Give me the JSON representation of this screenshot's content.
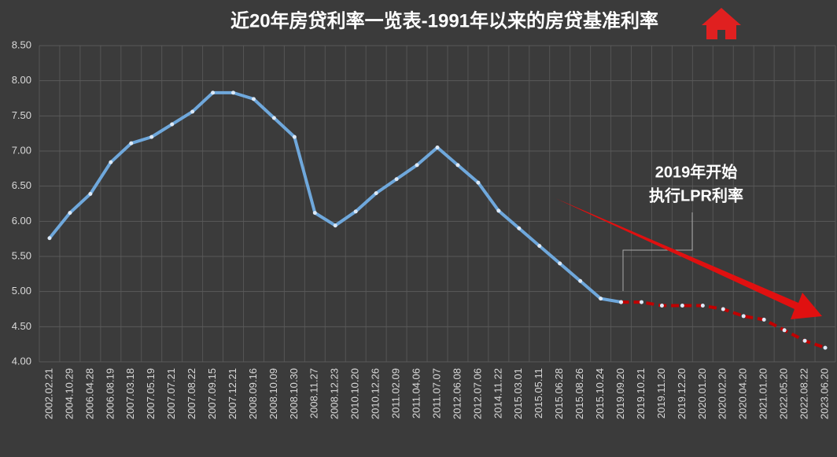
{
  "chart_data": {
    "type": "line",
    "title": "近20年房贷利率一览表-1991年以来的房贷基准利率",
    "annotation": [
      "2019年开始",
      "执行LPR利率"
    ],
    "categories": [
      "2002.02.21",
      "2004.10.29",
      "2006.04.28",
      "2006.08.19",
      "2007.03.18",
      "2007.05.19",
      "2007.07.21",
      "2007.08.22",
      "2007.09.15",
      "2007.12.21",
      "2008.09.16",
      "2008.10.09",
      "2008.10.30",
      "2008.11.27",
      "2008.12.23",
      "2010.10.20",
      "2010.12.26",
      "2011.02.09",
      "2011.04.06",
      "2011.07.07",
      "2012.06.08",
      "2012.07.06",
      "2014.11.22",
      "2015.03.01",
      "2015.05.11",
      "2015.06.28",
      "2015.08.26",
      "2015.10.24",
      "2019.09.20",
      "2019.10.21",
      "2019.11.20",
      "2019.12.20",
      "2020.01.20",
      "2020.02.20",
      "2020.04.20",
      "2021.01.20",
      "2022.05.20",
      "2022.08.22",
      "2023.06.20"
    ],
    "series": [
      {
        "color": "#6fa8dc",
        "dashed": false,
        "values": [
          5.76,
          6.12,
          6.39,
          6.84,
          7.11,
          7.2,
          7.38,
          7.56,
          7.83,
          7.83,
          7.74,
          7.47,
          7.2,
          6.12,
          5.94,
          6.14,
          6.4,
          6.6,
          6.8,
          7.05,
          6.8,
          6.55,
          6.15,
          5.9,
          5.65,
          5.4,
          5.15,
          4.9,
          4.85,
          null,
          null,
          null,
          null,
          null,
          null,
          null,
          null,
          null,
          null
        ]
      },
      {
        "color": "#c00000",
        "dashed": true,
        "values": [
          null,
          null,
          null,
          null,
          null,
          null,
          null,
          null,
          null,
          null,
          null,
          null,
          null,
          null,
          null,
          null,
          null,
          null,
          null,
          null,
          null,
          null,
          null,
          null,
          null,
          null,
          null,
          null,
          4.85,
          4.85,
          4.8,
          4.8,
          4.8,
          4.75,
          4.65,
          4.6,
          4.45,
          4.3,
          4.2
        ]
      }
    ],
    "ylim": [
      4,
      8.5
    ],
    "yticks": [
      {
        "value": 4,
        "label": "4.00"
      },
      {
        "value": 4.5,
        "label": "4.50"
      },
      {
        "value": 5,
        "label": "5.00"
      },
      {
        "value": 5.5,
        "label": "5.50"
      },
      {
        "value": 6,
        "label": "6.00"
      },
      {
        "value": 6.5,
        "label": "6.50"
      },
      {
        "value": 7,
        "label": "7.00"
      },
      {
        "value": 7.5,
        "label": "7.50"
      },
      {
        "value": 8,
        "label": "8.00"
      },
      {
        "value": 8.5,
        "label": "8.50"
      }
    ],
    "grid": true
  }
}
